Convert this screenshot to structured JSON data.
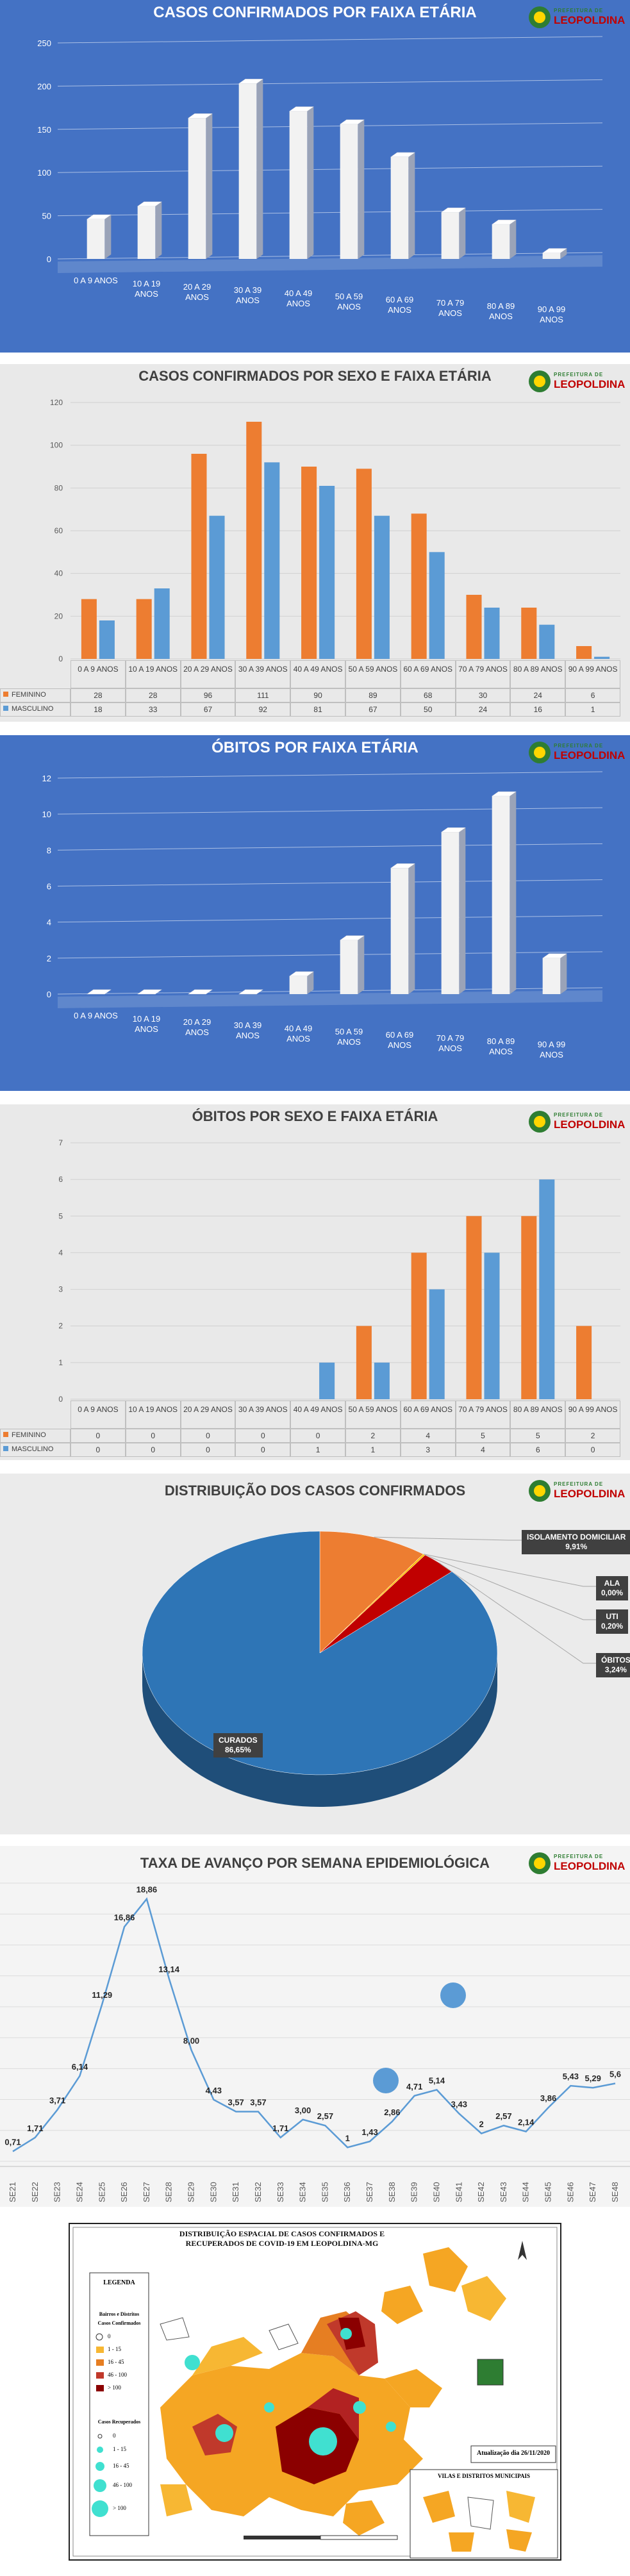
{
  "chart_data": [
    {
      "type": "bar",
      "style": "3d",
      "title": "CASOS CONFIRMADOS POR FAIXA ETÁRIA",
      "categories": [
        "0 A 9 ANOS",
        "10 A 19 ANOS",
        "20 A 29 ANOS",
        "30 A 39 ANOS",
        "40 A 49 ANOS",
        "50 A 59 ANOS",
        "60 A 69 ANOS",
        "70 A 79 ANOS",
        "80 A 89 ANOS",
        "90 A 99 ANOS"
      ],
      "values": [
        46,
        61,
        163,
        203,
        171,
        156,
        118,
        54,
        40,
        7
      ],
      "ylim": [
        0,
        250
      ],
      "yticks": [
        0,
        50,
        100,
        150,
        200,
        250
      ],
      "grid": true,
      "color": "#f2f2f2",
      "background": "#4472c4"
    },
    {
      "type": "bar",
      "title": "CASOS CONFIRMADOS POR SEXO E FAIXA ETÁRIA",
      "categories": [
        "0 A 9 ANOS",
        "10 A 19 ANOS",
        "20 A 29 ANOS",
        "30 A 39 ANOS",
        "40 A 49 ANOS",
        "50 A 59 ANOS",
        "60 A 69 ANOS",
        "70 A 79 ANOS",
        "80 A 89 ANOS",
        "90 A 99 ANOS"
      ],
      "series": [
        {
          "name": "FEMININO",
          "color": "#ed7d31",
          "values": [
            28,
            28,
            96,
            111,
            90,
            89,
            68,
            30,
            24,
            6
          ]
        },
        {
          "name": "MASCULINO",
          "color": "#5b9bd5",
          "values": [
            18,
            33,
            67,
            92,
            81,
            67,
            50,
            24,
            16,
            1
          ]
        }
      ],
      "ylim": [
        0,
        120
      ],
      "yticks": [
        0,
        20,
        40,
        60,
        80,
        100,
        120
      ],
      "grid": true,
      "data_table": true,
      "background": "#e9e9e9"
    },
    {
      "type": "bar",
      "style": "3d",
      "title": "ÓBITOS POR FAIXA ETÁRIA",
      "categories": [
        "0 A 9 ANOS",
        "10 A 19 ANOS",
        "20 A 29 ANOS",
        "30 A 39 ANOS",
        "40 A 49 ANOS",
        "50 A 59 ANOS",
        "60 A 69 ANOS",
        "70 A 79 ANOS",
        "80 A 89 ANOS",
        "90 A 99 ANOS"
      ],
      "values": [
        0,
        0,
        0,
        0,
        1,
        3,
        7,
        9,
        11,
        2
      ],
      "ylim": [
        0,
        12
      ],
      "yticks": [
        0,
        2,
        4,
        6,
        8,
        10,
        12
      ],
      "grid": true,
      "color": "#f2f2f2",
      "background": "#4472c4"
    },
    {
      "type": "bar",
      "title": "ÓBITOS POR SEXO E FAIXA ETÁRIA",
      "categories": [
        "0 A 9 ANOS",
        "10 A 19 ANOS",
        "20 A 29 ANOS",
        "30 A 39 ANOS",
        "40 A 49 ANOS",
        "50 A 59 ANOS",
        "60 A 69 ANOS",
        "70 A 79 ANOS",
        "80 A 89 ANOS",
        "90 A 99 ANOS"
      ],
      "series": [
        {
          "name": "FEMININO",
          "color": "#ed7d31",
          "values": [
            0,
            0,
            0,
            0,
            0,
            2,
            4,
            5,
            5,
            2
          ]
        },
        {
          "name": "MASCULINO",
          "color": "#5b9bd5",
          "values": [
            0,
            0,
            0,
            0,
            1,
            1,
            3,
            4,
            6,
            0
          ]
        }
      ],
      "ylim": [
        0,
        7
      ],
      "yticks": [
        0,
        1,
        2,
        3,
        4,
        5,
        6,
        7
      ],
      "grid": true,
      "data_table": true,
      "background": "#e9e9e9"
    },
    {
      "type": "pie",
      "title": "DISTRIBUIÇÃO DOS CASOS CONFIRMADOS",
      "categories": [
        "ISOLAMENTO DOMICILIAR",
        "ALA",
        "UTI",
        "ÓBITOS",
        "CURADOS"
      ],
      "values": [
        9.91,
        0,
        0.2,
        3.24,
        86.65
      ],
      "value_labels": [
        "9,91%",
        "0,00%",
        "0,20%",
        "3,24%",
        "86,65%"
      ],
      "colors": [
        "#ed7d31",
        "#a5a5a5",
        "#ffc000",
        "#c00000",
        "#2e75b6"
      ],
      "background": "#ebebeb"
    },
    {
      "type": "line",
      "title": "TAXA DE AVANÇO POR SEMANA EPIDEMIOLÓGICA",
      "categories": [
        "SE21",
        "SE22",
        "SE23",
        "SE24",
        "SE25",
        "SE26",
        "SE27",
        "SE28",
        "SE29",
        "SE30",
        "SE31",
        "SE32",
        "SE33",
        "SE34",
        "SE35",
        "SE36",
        "SE37",
        "SE38",
        "SE39",
        "SE40",
        "SE41",
        "SE42",
        "SE43",
        "SE44",
        "SE45",
        "SE46",
        "SE47",
        "SE48"
      ],
      "values": [
        0.71,
        1.71,
        3.71,
        6.14,
        11.29,
        16.86,
        18.86,
        13.14,
        8,
        4.43,
        3.57,
        3.57,
        1.71,
        3,
        2.57,
        1,
        1.43,
        2.86,
        4.71,
        5.14,
        3.43,
        2,
        2.57,
        2.14,
        3.86,
        5.43,
        5.29,
        5.6
      ],
      "value_labels": [
        "0,71",
        "1,71",
        "3,71",
        "6,14",
        "11,29",
        "16,86",
        "18,86",
        "13,14",
        "8,00",
        "4,43",
        "3,57",
        "3,57",
        "1,71",
        "3,00",
        "2,57",
        "1",
        "1,43",
        "2,86",
        "4,71",
        "5,14",
        "3,43",
        "2",
        "2,57",
        "2,14",
        "3,86",
        "5,43",
        "5,29",
        "5,6"
      ],
      "ylim": [
        0,
        20
      ],
      "color": "#5b9bd5",
      "background": "#f4f4f4"
    }
  ],
  "logo": {
    "line1": "PREFEITURA DE",
    "line2": "LEOPOLDINA"
  },
  "map": {
    "title": "DISTRIBUIÇÃO ESPACIAL DE CASOS CONFIRMADOS E RECUPERADOS DE COVID-19 EM LEOPOLDINA-MG",
    "legend": {
      "title": "LEGENDA",
      "subtitle": "Bairros e Distritos",
      "confirmed_title": "Casos Confirmados",
      "confirmed": [
        "0",
        "1 - 15",
        "16 - 45",
        "46 - 100",
        "> 100"
      ],
      "recovered_title": "Casos Recuperados",
      "recovered": [
        "0",
        "1 - 15",
        "16 - 45",
        "46 - 100",
        "> 100"
      ]
    },
    "update": "Atualização dia 26/11/2020",
    "inset_title": "VILAS E DISTRITOS MUNICIPAIS"
  }
}
